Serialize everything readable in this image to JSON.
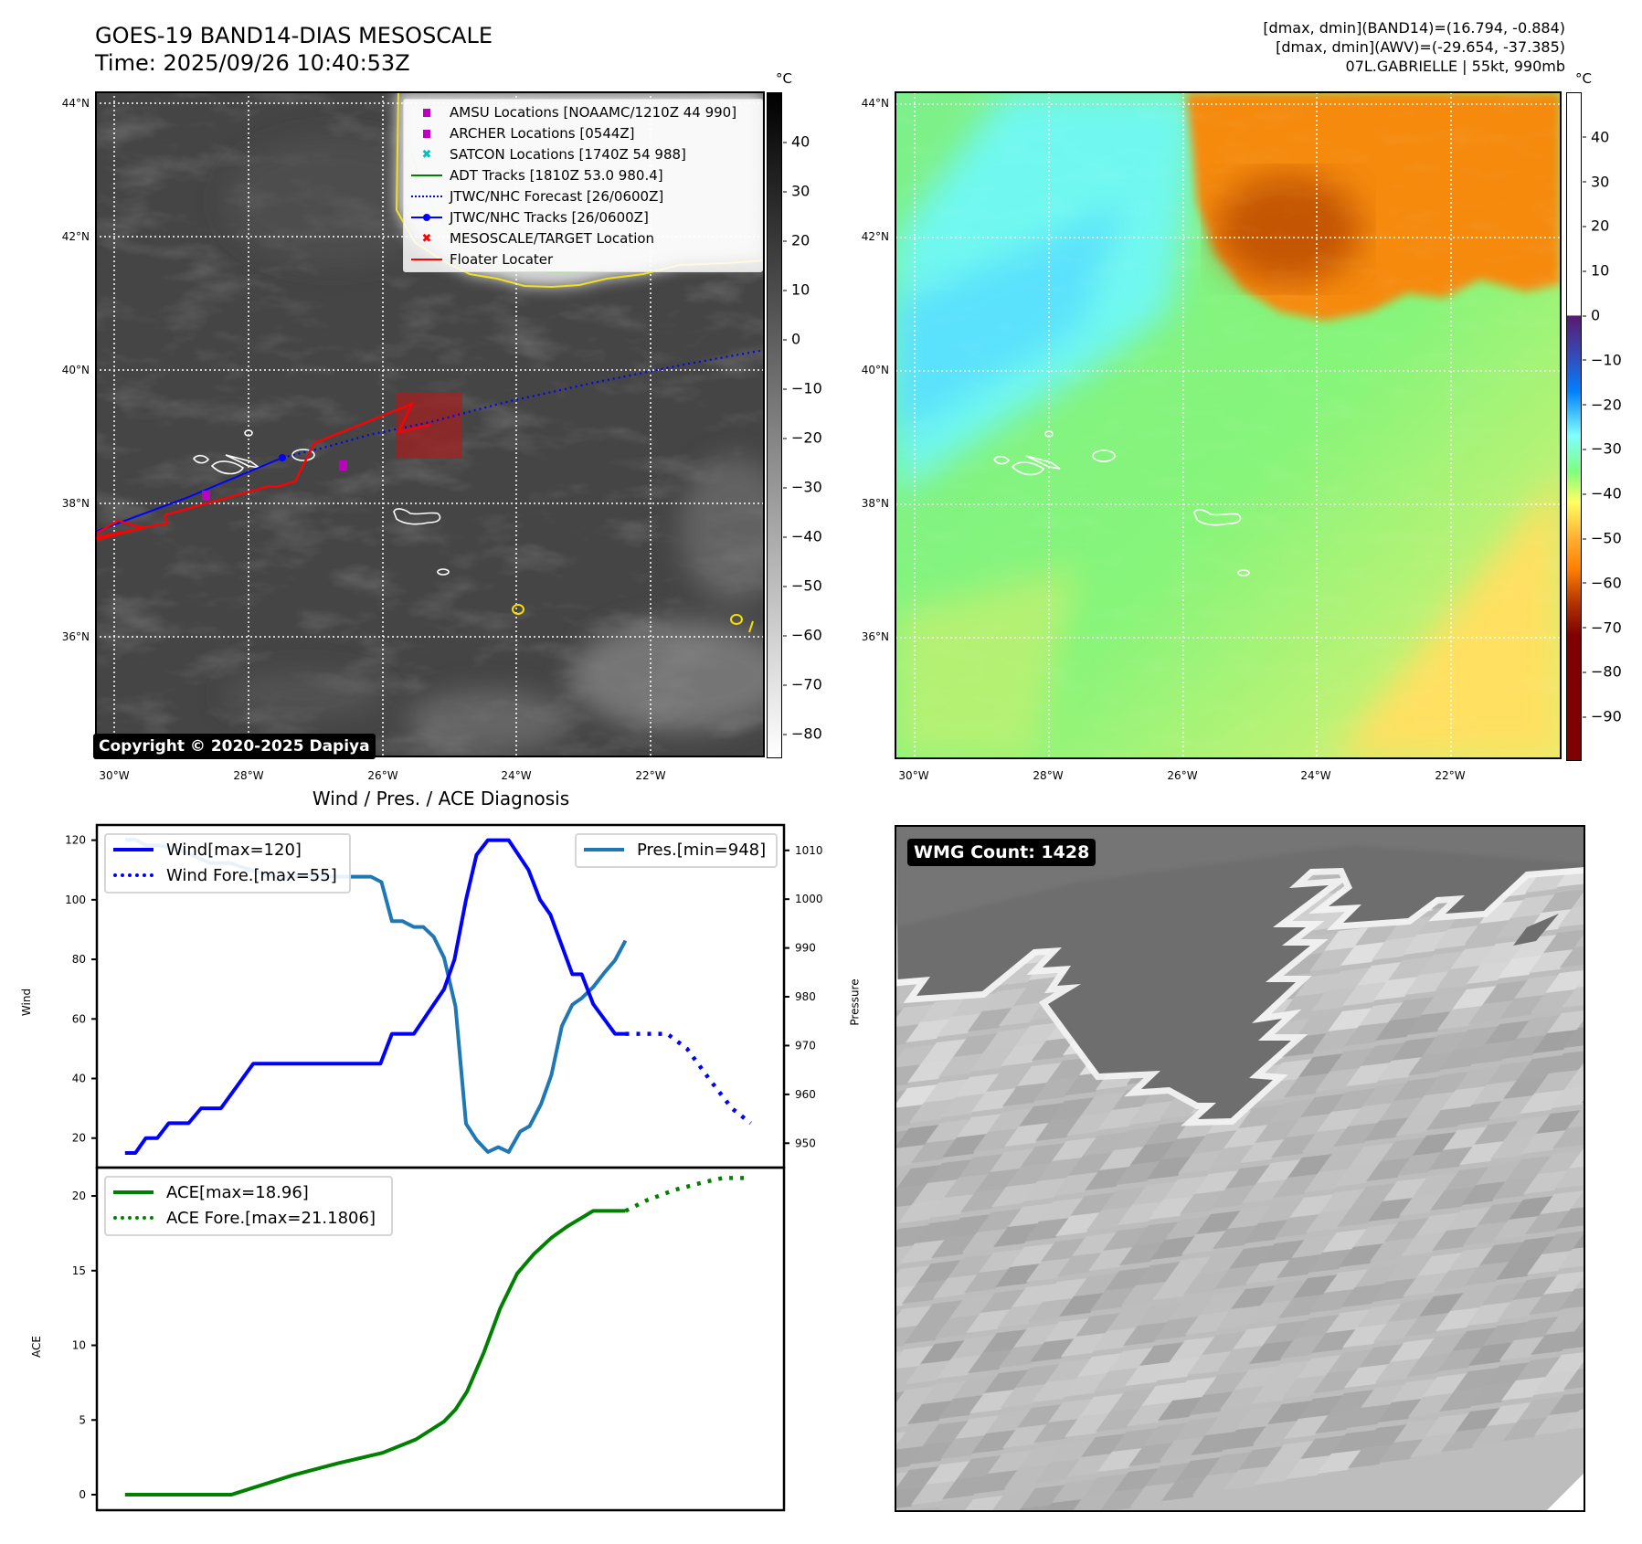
{
  "header": {
    "title": "GOES-19 BAND14-DIAS MESOSCALE",
    "time": "Time: 2025/09/26 10:40:53Z",
    "info": [
      "[dmax, dmin](BAND14)=(16.794, -0.884)",
      "[dmax, dmin](AWV)=(-29.654, -37.385)",
      "07L.GABRIELLE | 55kt, 990mb"
    ]
  },
  "maps": {
    "lat_labels": [
      "44°N",
      "42°N",
      "40°N",
      "38°N",
      "36°N"
    ],
    "lon_labels": [
      "30°W",
      "28°W",
      "26°W",
      "24°W",
      "22°W"
    ],
    "colorbar_unit": "°C",
    "ir_colorbar": {
      "ticks": [
        "40",
        "30",
        "20",
        "10",
        "0",
        "−10",
        "−20",
        "−30",
        "−40",
        "−50",
        "−60",
        "−70",
        "−80"
      ],
      "values": [
        40,
        30,
        20,
        10,
        0,
        -10,
        -20,
        -30,
        -40,
        -50,
        -60,
        -70,
        -80
      ],
      "range": [
        -85,
        50
      ]
    },
    "awv_colorbar": {
      "ticks": [
        "40",
        "30",
        "20",
        "10",
        "0",
        "−10",
        "−20",
        "−30",
        "−40",
        "−50",
        "−60",
        "−70",
        "−80",
        "−90"
      ],
      "values": [
        40,
        30,
        20,
        10,
        0,
        -10,
        -20,
        -30,
        -40,
        -50,
        -60,
        -70,
        -80,
        -90
      ],
      "range": [
        -100,
        50
      ]
    },
    "copyright": "Copyright © 2020-2025 Dapiya",
    "legend": [
      {
        "label": "AMSU Locations [NOAAMC/1210Z 44 990]",
        "icon": "square-marker"
      },
      {
        "label": "ARCHER Locations [0544Z]",
        "icon": "square-marker"
      },
      {
        "label": "SATCON Locations [1740Z 54 988]",
        "icon": "x-marker"
      },
      {
        "label": "ADT Tracks [1810Z 53.0 980.4]",
        "icon": "line"
      },
      {
        "label": "JTWC/NHC Forecast [26/0600Z]",
        "icon": "dotted-line"
      },
      {
        "label": "JTWC/NHC Tracks [26/0600Z]",
        "icon": "line-dot"
      },
      {
        "label": "MESOSCALE/TARGET Location",
        "icon": "x-marker"
      },
      {
        "label": "Floater Locater",
        "icon": "line"
      }
    ]
  },
  "colors": {
    "amsu": "#c000c0",
    "archer": "#c000c0",
    "satcon": "#00bfbf",
    "adt": "#008000",
    "jtwc": "#0000ff",
    "target": "#ff0000",
    "floater": "#ff0000",
    "wind": "#0000ff",
    "pressure": "#1f77b4",
    "ace": "#008000"
  },
  "wmg": {
    "label": "WMG Count: 1428"
  },
  "chart_data": [
    {
      "type": "line",
      "title": "Wind / Pres. / ACE Diagnosis",
      "xlabel": "",
      "xlim": [
        -2.7,
        63.2
      ],
      "ylabel": "Wind",
      "ylim": [
        10.1,
        125.1
      ],
      "yticks": [
        20,
        40,
        60,
        80,
        100,
        120
      ],
      "y2label": "Pressure",
      "y2lim": [
        945,
        1015.2
      ],
      "y2ticks": [
        950,
        960,
        970,
        980,
        990,
        1000,
        1010
      ],
      "series": [
        {
          "name": "Wind[max=120]",
          "axis": "left",
          "style": "solid",
          "x": [
            0,
            1,
            2,
            3.1,
            4.2,
            6.1,
            7.3,
            9.2,
            12.3,
            24.5,
            25.6,
            27.7,
            30.6,
            31.6,
            32.7,
            33.7,
            34.8,
            36.8,
            38.7,
            39.8,
            40.8,
            42.9,
            43.8,
            44.9,
            47,
            48
          ],
          "y": [
            15,
            15,
            20,
            20,
            25,
            25,
            30,
            30,
            45,
            45,
            55,
            55,
            70,
            80,
            100,
            115,
            120,
            120,
            110,
            100,
            95,
            75,
            75,
            65,
            55,
            55
          ]
        },
        {
          "name": "Wind Fore.[max=55]",
          "axis": "left",
          "style": "dotted",
          "x": [
            48,
            52,
            53.9,
            56,
            58.2,
            60
          ],
          "y": [
            55,
            55,
            50,
            40,
            30,
            25
          ]
        },
        {
          "name": "Pres.[min=948]",
          "axis": "right",
          "style": "solid",
          "x": [
            0,
            1,
            2,
            3.4,
            5.3,
            8.2,
            10.1,
            12.3,
            14.4,
            23.6,
            24.6,
            25.6,
            26.6,
            27.7,
            28.6,
            29.6,
            30.6,
            31.7,
            32.7,
            33.7,
            34.8,
            35.8,
            36.8,
            37.9,
            38.8,
            39.9,
            40.9,
            41.9,
            42.9,
            43.8,
            44.9,
            46,
            47,
            48
          ],
          "y": [
            1012.2,
            1012.2,
            1011,
            1011,
            1010,
            1007.4,
            1007.4,
            1005.8,
            1004.6,
            1004.6,
            1003.5,
            995.5,
            995.5,
            994.3,
            994.3,
            992.3,
            988,
            978,
            954,
            950.7,
            948.2,
            949.2,
            948.2,
            952.4,
            953.5,
            958,
            964,
            974,
            978.4,
            979.7,
            982,
            985,
            987.5,
            991.5
          ]
        }
      ]
    },
    {
      "type": "line",
      "title": "",
      "xlabel": "",
      "xlim": [
        -2.7,
        63.2
      ],
      "ylabel": "ACE",
      "ylim": [
        -1.04,
        21.9
      ],
      "yticks": [
        0,
        5,
        10,
        15,
        20
      ],
      "series": [
        {
          "name": "ACE[max=18.96]",
          "style": "solid",
          "x": [
            0,
            10.2,
            16.1,
            20.4,
            24.7,
            27.9,
            30.6,
            31.7,
            32.8,
            34.4,
            36,
            37.6,
            39.2,
            40.9,
            42.5,
            44.9,
            48
          ],
          "y": [
            0,
            0,
            1.3,
            2.1,
            2.8,
            3.7,
            4.9,
            5.7,
            6.9,
            9.5,
            12.5,
            14.8,
            16.1,
            17.2,
            18.0,
            19.0,
            19.0
          ]
        },
        {
          "name": "ACE Fore.[max=21.1806]",
          "style": "dotted",
          "x": [
            48,
            50,
            52.7,
            55.4,
            57.3,
            60
          ],
          "y": [
            19.0,
            19.7,
            20.4,
            20.9,
            21.2,
            21.2
          ]
        }
      ]
    }
  ]
}
